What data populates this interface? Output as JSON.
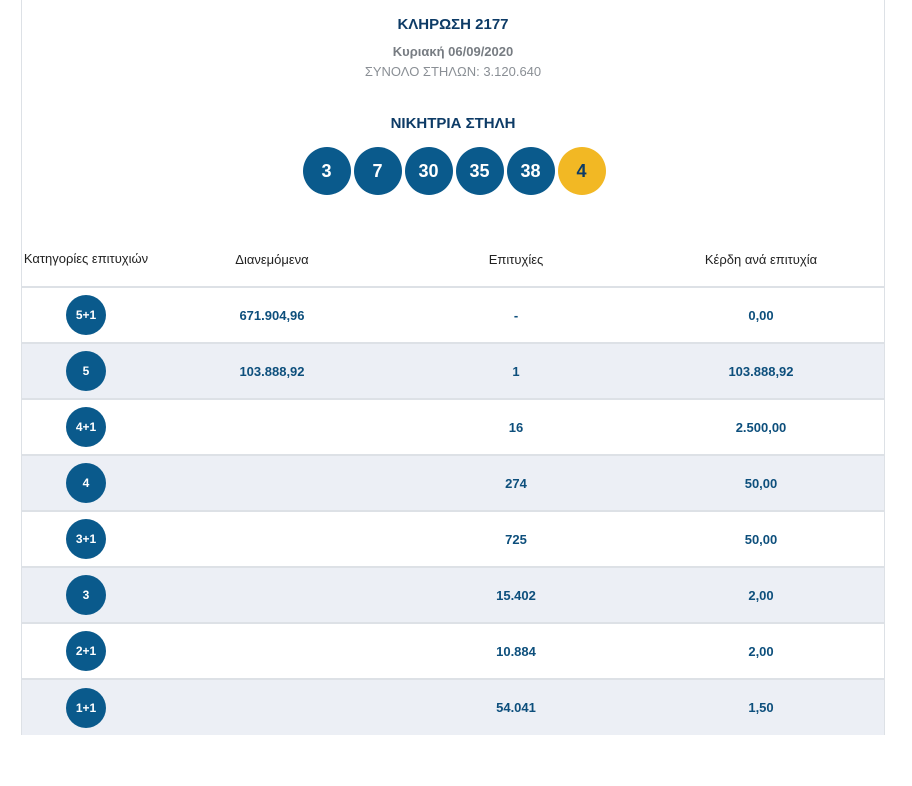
{
  "draw": {
    "title": "ΚΛΗΡΩΣΗ 2177",
    "date": "Κυριακή 06/09/2020",
    "total_columns": "ΣΥΝΟΛΟ ΣΤΗΛΩΝ: 3.120.640"
  },
  "winning": {
    "title": "ΝΙΚΗΤΡΙΑ ΣΤΗΛΗ",
    "numbers": [
      "3",
      "7",
      "30",
      "35",
      "38"
    ],
    "joker": "4",
    "colors": {
      "main": "#0a5a8c",
      "joker": "#f2b824"
    }
  },
  "table": {
    "headers": {
      "category": "Κατηγορίες επιτυχιών",
      "pool": "Διανεμόμενα",
      "winners": "Επιτυχίες",
      "prize": "Κέρδη ανά επιτυχία"
    },
    "rows": [
      {
        "category": "5+1",
        "pool": "671.904,96",
        "winners": "-",
        "prize": "0,00"
      },
      {
        "category": "5",
        "pool": "103.888,92",
        "winners": "1",
        "prize": "103.888,92"
      },
      {
        "category": "4+1",
        "pool": "",
        "winners": "16",
        "prize": "2.500,00"
      },
      {
        "category": "4",
        "pool": "",
        "winners": "274",
        "prize": "50,00"
      },
      {
        "category": "3+1",
        "pool": "",
        "winners": "725",
        "prize": "50,00"
      },
      {
        "category": "3",
        "pool": "",
        "winners": "15.402",
        "prize": "2,00"
      },
      {
        "category": "2+1",
        "pool": "",
        "winners": "10.884",
        "prize": "2,00"
      },
      {
        "category": "1+1",
        "pool": "",
        "winners": "54.041",
        "prize": "1,50"
      }
    ]
  }
}
